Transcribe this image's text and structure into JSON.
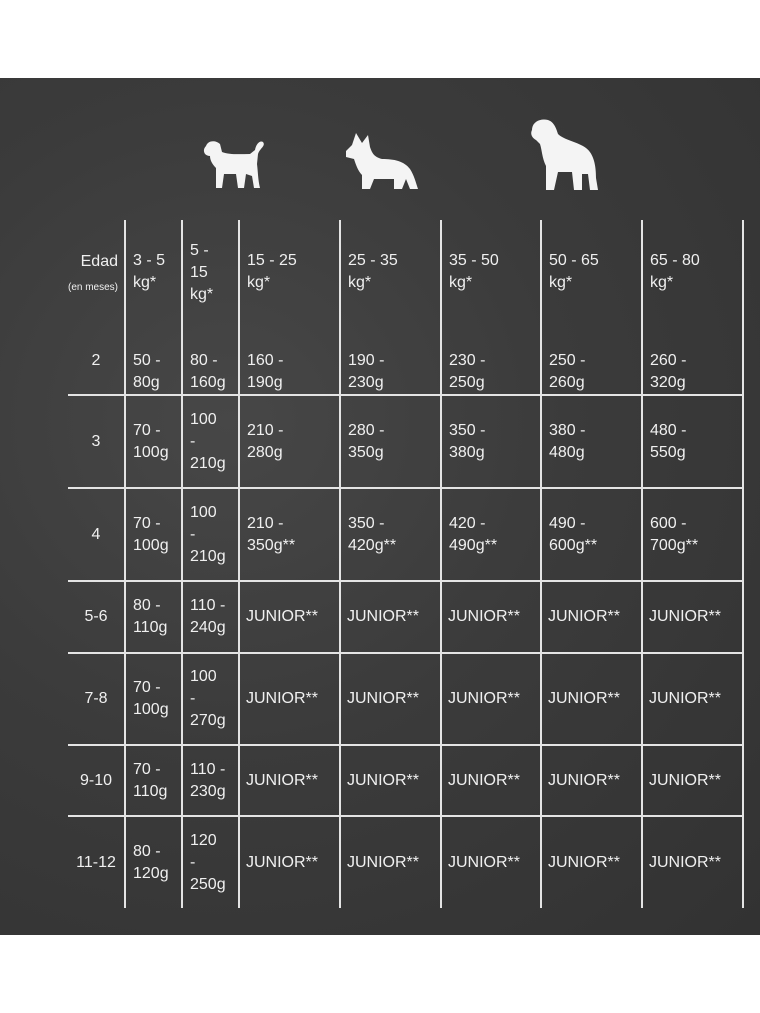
{
  "header": {
    "age_label": "Edad",
    "age_unit_label": "(en meses)",
    "weights": [
      "3 - 5\nkg*",
      "5 -\n15\nkg*",
      "15 - 25\nkg*",
      "25 - 35\nkg*",
      "35 - 50\nkg*",
      "50 - 65\nkg*",
      "65 - 80\nkg*"
    ]
  },
  "icons": [
    "small-dog-icon",
    "medium-dog-icon",
    "large-dog-icon"
  ],
  "rows": [
    {
      "age": "2",
      "cells": [
        "50 -\n80g",
        "80 -\n160g",
        "160 -\n190g",
        "190 -\n230g",
        "230 -\n250g",
        "250 -\n260g",
        "260 -\n320g"
      ]
    },
    {
      "age": "3",
      "cells": [
        "70 -\n100g",
        "100\n-\n210g",
        "210 -\n280g",
        "280 -\n350g",
        "350 -\n380g",
        "380 -\n480g",
        "480 -\n550g"
      ]
    },
    {
      "age": "4",
      "cells": [
        "70 -\n100g",
        "100\n-\n210g",
        "210 -\n350g**",
        "350 -\n420g**",
        "420 -\n490g**",
        "490 -\n600g**",
        "600 -\n700g**"
      ]
    },
    {
      "age": "5-6",
      "cells": [
        "80 -\n110g",
        "110 -\n240g",
        "JUNIOR**",
        "JUNIOR**",
        "JUNIOR**",
        "JUNIOR**",
        "JUNIOR**"
      ]
    },
    {
      "age": "7-8",
      "cells": [
        "70 -\n100g",
        "100\n-\n270g",
        "JUNIOR**",
        "JUNIOR**",
        "JUNIOR**",
        "JUNIOR**",
        "JUNIOR**"
      ]
    },
    {
      "age": "9-10",
      "cells": [
        "70 -\n110g",
        "110 -\n230g",
        "JUNIOR**",
        "JUNIOR**",
        "JUNIOR**",
        "JUNIOR**",
        "JUNIOR**"
      ]
    },
    {
      "age": "11-12",
      "cells": [
        "80 -\n120g",
        "120\n-\n250g",
        "JUNIOR**",
        "JUNIOR**",
        "JUNIOR**",
        "JUNIOR**",
        "JUNIOR**"
      ]
    }
  ]
}
